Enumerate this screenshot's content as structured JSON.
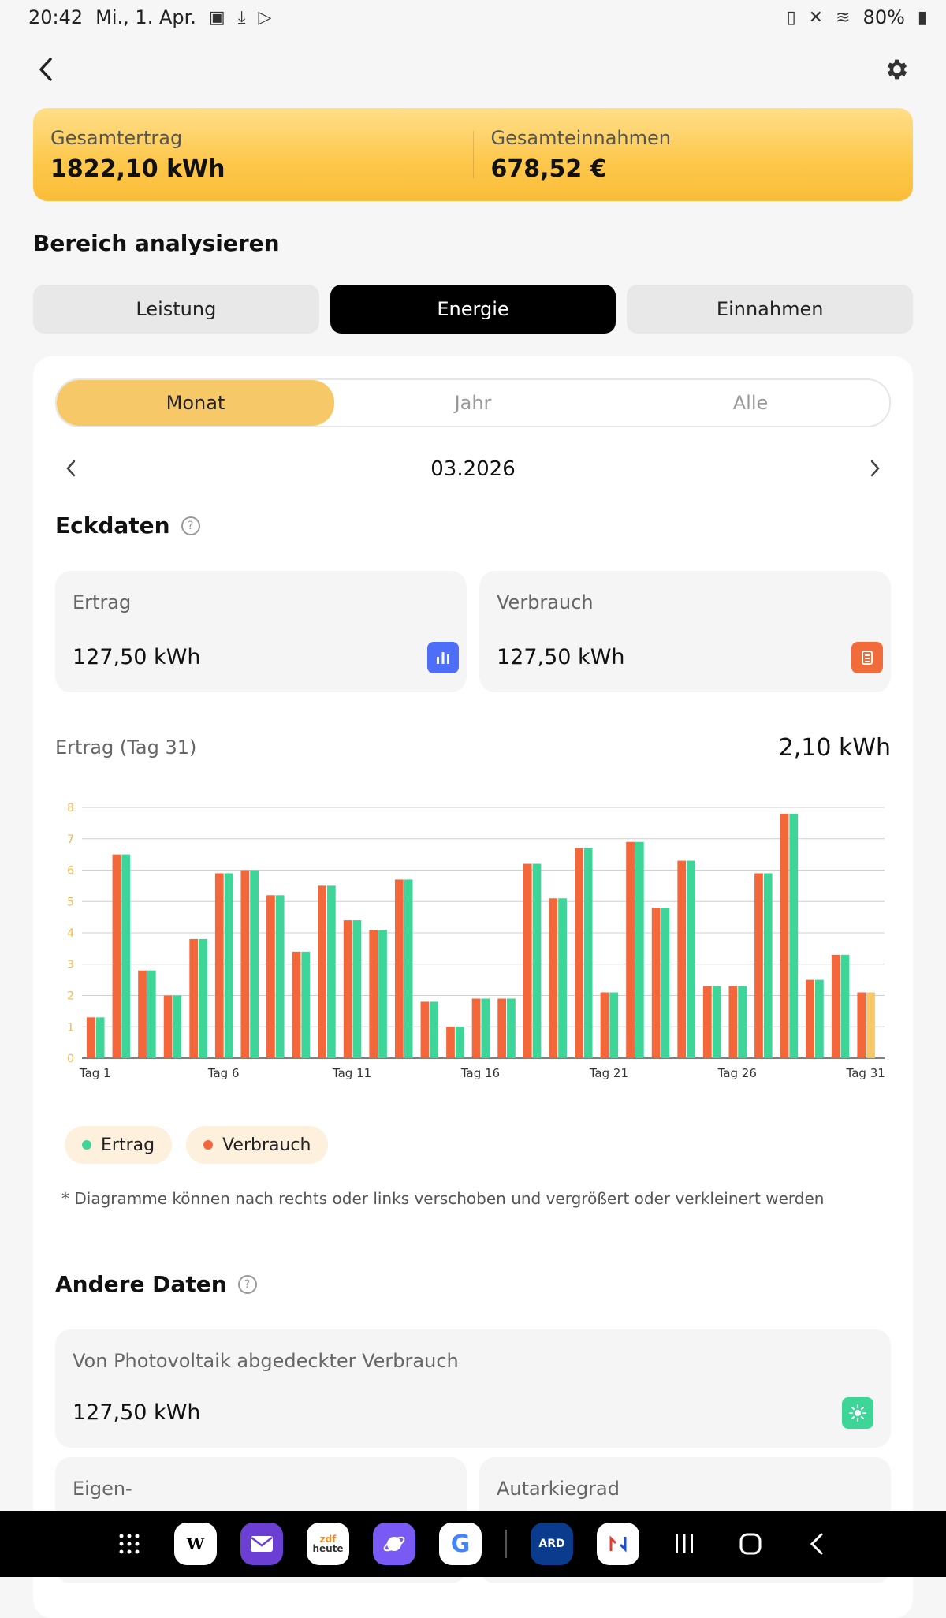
{
  "status": {
    "time": "20:42",
    "date": "Mi., 1. Apr.",
    "battery": "80%"
  },
  "summary": {
    "left_label": "Gesamtertrag",
    "left_value": "1822,10 kWh",
    "right_label": "Gesamteinnahmen",
    "right_value": "678,52 €"
  },
  "section_title": "Bereich analysieren",
  "tabs": [
    {
      "label": "Leistung"
    },
    {
      "label": "Energie"
    },
    {
      "label": "Einnahmen"
    }
  ],
  "period": [
    {
      "label": "Monat"
    },
    {
      "label": "Jahr"
    },
    {
      "label": "Alle"
    }
  ],
  "date_label": "03.2026",
  "eckdaten_title": "Eckdaten",
  "ertrag": {
    "label": "Ertrag",
    "value": "127,50 kWh"
  },
  "verbrauch": {
    "label": "Verbrauch",
    "value": "127,50 kWh"
  },
  "chart_header": {
    "label": "Ertrag (Tag 31)",
    "value": "2,10 kWh"
  },
  "legend": {
    "ertrag": "Ertrag",
    "verbrauch": "Verbrauch"
  },
  "note": "* Diagramme können nach rechts oder links verschoben und vergrößert oder verkleinert werden",
  "andere_title": "Andere Daten",
  "pv_card": {
    "label": "Von Photovoltaik abgedeckter Verbrauch",
    "value": "127,50 kWh"
  },
  "eigen_label": "Eigen-",
  "autarkie_label": "Autarkiegrad",
  "colors": {
    "ertrag": "#3dd598",
    "verbrauch": "#f4673b",
    "highlight": "#f7c867",
    "accent_blue": "#4f6ef7",
    "accent_orange": "#f26b3a"
  },
  "chart_data": {
    "type": "bar",
    "categories": [
      "Tag 1",
      "Tag 2",
      "Tag 3",
      "Tag 4",
      "Tag 5",
      "Tag 6",
      "Tag 7",
      "Tag 8",
      "Tag 9",
      "Tag 10",
      "Tag 11",
      "Tag 12",
      "Tag 13",
      "Tag 14",
      "Tag 15",
      "Tag 16",
      "Tag 17",
      "Tag 18",
      "Tag 19",
      "Tag 20",
      "Tag 21",
      "Tag 22",
      "Tag 23",
      "Tag 24",
      "Tag 25",
      "Tag 26",
      "Tag 27",
      "Tag 28",
      "Tag 29",
      "Tag 30",
      "Tag 31"
    ],
    "tick_labels": [
      "Tag 1",
      "Tag 6",
      "Tag 11",
      "Tag 16",
      "Tag 21",
      "Tag 26",
      "Tag 31"
    ],
    "series": [
      {
        "name": "Verbrauch",
        "values": [
          1.3,
          6.5,
          2.8,
          2.0,
          3.8,
          5.9,
          6.0,
          5.2,
          3.4,
          5.5,
          4.4,
          4.1,
          5.7,
          1.8,
          1.0,
          1.9,
          1.9,
          6.2,
          5.1,
          6.7,
          2.1,
          6.9,
          4.8,
          6.3,
          2.3,
          2.3,
          5.9,
          7.8,
          2.5,
          3.3,
          2.1
        ]
      },
      {
        "name": "Ertrag",
        "values": [
          1.3,
          6.5,
          2.8,
          2.0,
          3.8,
          5.9,
          6.0,
          5.2,
          3.4,
          5.5,
          4.4,
          4.1,
          5.7,
          1.8,
          1.0,
          1.9,
          1.9,
          6.2,
          5.1,
          6.7,
          2.1,
          6.9,
          4.8,
          6.3,
          2.3,
          2.3,
          5.9,
          7.8,
          2.5,
          3.3,
          2.1
        ]
      }
    ],
    "highlighted_category": "Tag 31",
    "ylim": [
      0,
      8
    ],
    "yticks": [
      0,
      1,
      2,
      3,
      4,
      5,
      6,
      7,
      8
    ],
    "grid": true,
    "legend_position": "bottom-left"
  }
}
